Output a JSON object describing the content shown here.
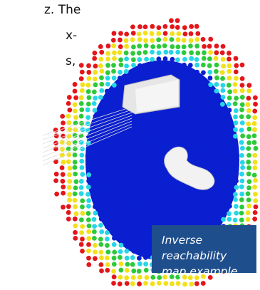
{
  "body_text": {
    "lines": [
      "z. The",
      "x-",
      "s,"
    ]
  },
  "figure": {
    "caption": {
      "lines": [
        "Inverse reachability",
        "map example"
      ]
    }
  }
}
